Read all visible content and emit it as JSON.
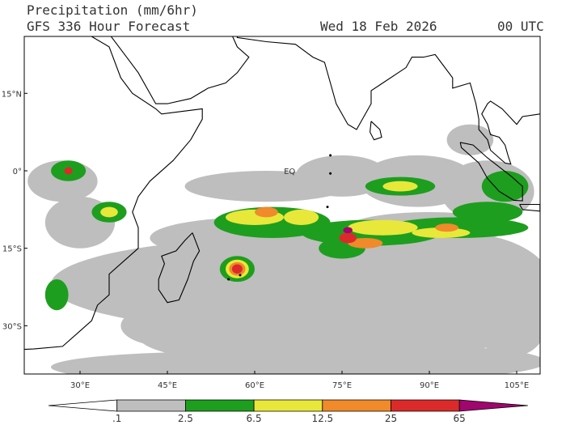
{
  "header": {
    "title": "Precipitation (mm/6hr)",
    "subtitle": "GFS 336 Hour Forecast",
    "date": "Wed 18 Feb 2026",
    "time": "00 UTC"
  },
  "map": {
    "equator_label": "EQ",
    "lat_labels": [
      "15°N",
      "0°",
      "15°S",
      "30°S"
    ],
    "lon_labels": [
      "30°E",
      "45°E",
      "60°E",
      "75°E",
      "90°E",
      "105°E"
    ]
  },
  "colorbar": {
    "labels": [
      ".1",
      "2.5",
      "6.5",
      "12.5",
      "25",
      "65"
    ],
    "colors": [
      "#ffffff",
      "#bebebe",
      "#1e9e1e",
      "#e8e83a",
      "#f08a2a",
      "#dc2a2a",
      "#a0066e"
    ]
  }
}
